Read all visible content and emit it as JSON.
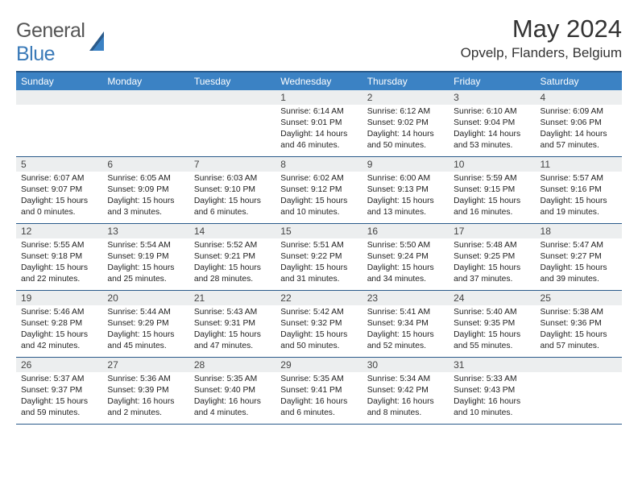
{
  "logo": {
    "part1": "General",
    "part2": "Blue"
  },
  "title": "May 2024",
  "location": "Opvelp, Flanders, Belgium",
  "colors": {
    "header_bg": "#3b82c4",
    "header_border": "#2a5a8a",
    "daynum_bg": "#eceeef",
    "text": "#333333",
    "logo_gray": "#555555",
    "logo_blue": "#3a7ab8"
  },
  "fonts": {
    "title_size": 31,
    "location_size": 17,
    "header_size": 12,
    "daynum_size": 12,
    "body_size": 10.3,
    "logo_size": 25
  },
  "day_headers": [
    "Sunday",
    "Monday",
    "Tuesday",
    "Wednesday",
    "Thursday",
    "Friday",
    "Saturday"
  ],
  "weeks": [
    [
      {
        "n": "",
        "sr": "",
        "ss": "",
        "dl1": "",
        "dl2": ""
      },
      {
        "n": "",
        "sr": "",
        "ss": "",
        "dl1": "",
        "dl2": ""
      },
      {
        "n": "",
        "sr": "",
        "ss": "",
        "dl1": "",
        "dl2": ""
      },
      {
        "n": "1",
        "sr": "Sunrise: 6:14 AM",
        "ss": "Sunset: 9:01 PM",
        "dl1": "Daylight: 14 hours",
        "dl2": "and 46 minutes."
      },
      {
        "n": "2",
        "sr": "Sunrise: 6:12 AM",
        "ss": "Sunset: 9:02 PM",
        "dl1": "Daylight: 14 hours",
        "dl2": "and 50 minutes."
      },
      {
        "n": "3",
        "sr": "Sunrise: 6:10 AM",
        "ss": "Sunset: 9:04 PM",
        "dl1": "Daylight: 14 hours",
        "dl2": "and 53 minutes."
      },
      {
        "n": "4",
        "sr": "Sunrise: 6:09 AM",
        "ss": "Sunset: 9:06 PM",
        "dl1": "Daylight: 14 hours",
        "dl2": "and 57 minutes."
      }
    ],
    [
      {
        "n": "5",
        "sr": "Sunrise: 6:07 AM",
        "ss": "Sunset: 9:07 PM",
        "dl1": "Daylight: 15 hours",
        "dl2": "and 0 minutes."
      },
      {
        "n": "6",
        "sr": "Sunrise: 6:05 AM",
        "ss": "Sunset: 9:09 PM",
        "dl1": "Daylight: 15 hours",
        "dl2": "and 3 minutes."
      },
      {
        "n": "7",
        "sr": "Sunrise: 6:03 AM",
        "ss": "Sunset: 9:10 PM",
        "dl1": "Daylight: 15 hours",
        "dl2": "and 6 minutes."
      },
      {
        "n": "8",
        "sr": "Sunrise: 6:02 AM",
        "ss": "Sunset: 9:12 PM",
        "dl1": "Daylight: 15 hours",
        "dl2": "and 10 minutes."
      },
      {
        "n": "9",
        "sr": "Sunrise: 6:00 AM",
        "ss": "Sunset: 9:13 PM",
        "dl1": "Daylight: 15 hours",
        "dl2": "and 13 minutes."
      },
      {
        "n": "10",
        "sr": "Sunrise: 5:59 AM",
        "ss": "Sunset: 9:15 PM",
        "dl1": "Daylight: 15 hours",
        "dl2": "and 16 minutes."
      },
      {
        "n": "11",
        "sr": "Sunrise: 5:57 AM",
        "ss": "Sunset: 9:16 PM",
        "dl1": "Daylight: 15 hours",
        "dl2": "and 19 minutes."
      }
    ],
    [
      {
        "n": "12",
        "sr": "Sunrise: 5:55 AM",
        "ss": "Sunset: 9:18 PM",
        "dl1": "Daylight: 15 hours",
        "dl2": "and 22 minutes."
      },
      {
        "n": "13",
        "sr": "Sunrise: 5:54 AM",
        "ss": "Sunset: 9:19 PM",
        "dl1": "Daylight: 15 hours",
        "dl2": "and 25 minutes."
      },
      {
        "n": "14",
        "sr": "Sunrise: 5:52 AM",
        "ss": "Sunset: 9:21 PM",
        "dl1": "Daylight: 15 hours",
        "dl2": "and 28 minutes."
      },
      {
        "n": "15",
        "sr": "Sunrise: 5:51 AM",
        "ss": "Sunset: 9:22 PM",
        "dl1": "Daylight: 15 hours",
        "dl2": "and 31 minutes."
      },
      {
        "n": "16",
        "sr": "Sunrise: 5:50 AM",
        "ss": "Sunset: 9:24 PM",
        "dl1": "Daylight: 15 hours",
        "dl2": "and 34 minutes."
      },
      {
        "n": "17",
        "sr": "Sunrise: 5:48 AM",
        "ss": "Sunset: 9:25 PM",
        "dl1": "Daylight: 15 hours",
        "dl2": "and 37 minutes."
      },
      {
        "n": "18",
        "sr": "Sunrise: 5:47 AM",
        "ss": "Sunset: 9:27 PM",
        "dl1": "Daylight: 15 hours",
        "dl2": "and 39 minutes."
      }
    ],
    [
      {
        "n": "19",
        "sr": "Sunrise: 5:46 AM",
        "ss": "Sunset: 9:28 PM",
        "dl1": "Daylight: 15 hours",
        "dl2": "and 42 minutes."
      },
      {
        "n": "20",
        "sr": "Sunrise: 5:44 AM",
        "ss": "Sunset: 9:29 PM",
        "dl1": "Daylight: 15 hours",
        "dl2": "and 45 minutes."
      },
      {
        "n": "21",
        "sr": "Sunrise: 5:43 AM",
        "ss": "Sunset: 9:31 PM",
        "dl1": "Daylight: 15 hours",
        "dl2": "and 47 minutes."
      },
      {
        "n": "22",
        "sr": "Sunrise: 5:42 AM",
        "ss": "Sunset: 9:32 PM",
        "dl1": "Daylight: 15 hours",
        "dl2": "and 50 minutes."
      },
      {
        "n": "23",
        "sr": "Sunrise: 5:41 AM",
        "ss": "Sunset: 9:34 PM",
        "dl1": "Daylight: 15 hours",
        "dl2": "and 52 minutes."
      },
      {
        "n": "24",
        "sr": "Sunrise: 5:40 AM",
        "ss": "Sunset: 9:35 PM",
        "dl1": "Daylight: 15 hours",
        "dl2": "and 55 minutes."
      },
      {
        "n": "25",
        "sr": "Sunrise: 5:38 AM",
        "ss": "Sunset: 9:36 PM",
        "dl1": "Daylight: 15 hours",
        "dl2": "and 57 minutes."
      }
    ],
    [
      {
        "n": "26",
        "sr": "Sunrise: 5:37 AM",
        "ss": "Sunset: 9:37 PM",
        "dl1": "Daylight: 15 hours",
        "dl2": "and 59 minutes."
      },
      {
        "n": "27",
        "sr": "Sunrise: 5:36 AM",
        "ss": "Sunset: 9:39 PM",
        "dl1": "Daylight: 16 hours",
        "dl2": "and 2 minutes."
      },
      {
        "n": "28",
        "sr": "Sunrise: 5:35 AM",
        "ss": "Sunset: 9:40 PM",
        "dl1": "Daylight: 16 hours",
        "dl2": "and 4 minutes."
      },
      {
        "n": "29",
        "sr": "Sunrise: 5:35 AM",
        "ss": "Sunset: 9:41 PM",
        "dl1": "Daylight: 16 hours",
        "dl2": "and 6 minutes."
      },
      {
        "n": "30",
        "sr": "Sunrise: 5:34 AM",
        "ss": "Sunset: 9:42 PM",
        "dl1": "Daylight: 16 hours",
        "dl2": "and 8 minutes."
      },
      {
        "n": "31",
        "sr": "Sunrise: 5:33 AM",
        "ss": "Sunset: 9:43 PM",
        "dl1": "Daylight: 16 hours",
        "dl2": "and 10 minutes."
      },
      {
        "n": "",
        "sr": "",
        "ss": "",
        "dl1": "",
        "dl2": ""
      }
    ]
  ]
}
